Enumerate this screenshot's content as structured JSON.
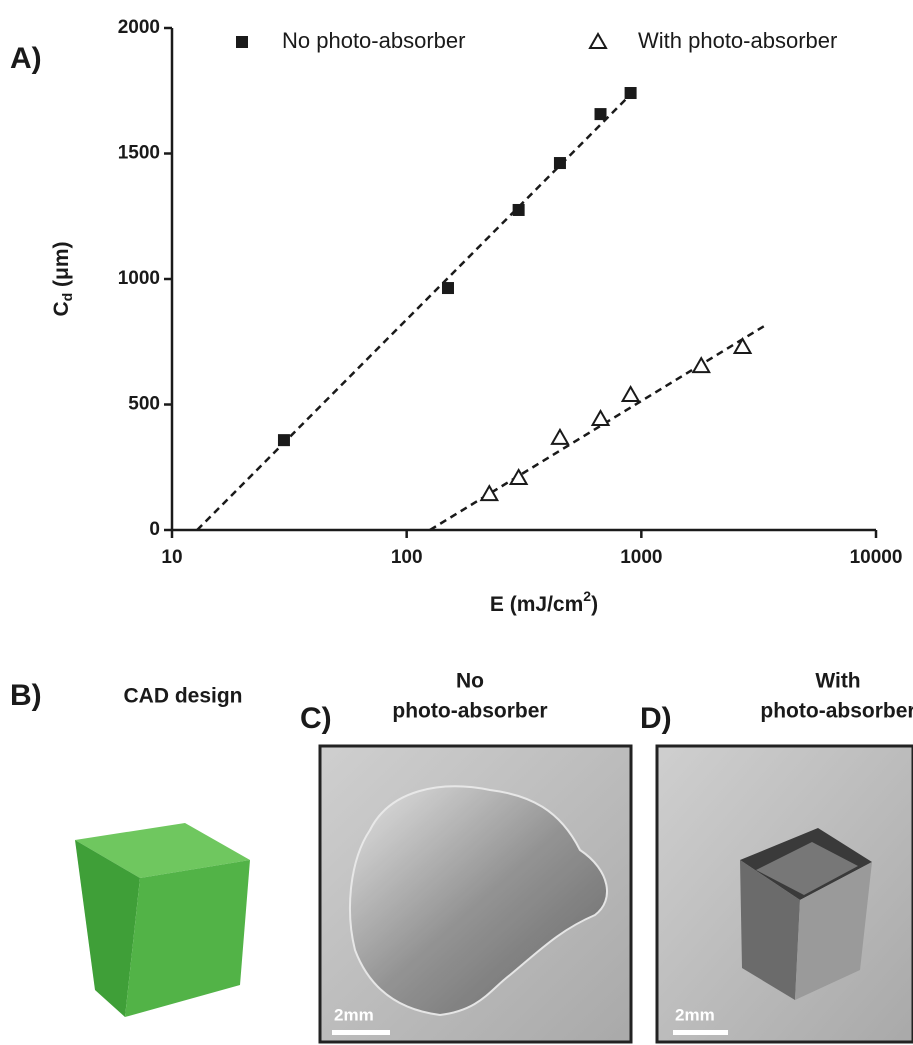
{
  "chart_data": {
    "type": "scatter",
    "panel_label": "A)",
    "xlabel": [
      "E  (mJ/cm",
      "2",
      ")"
    ],
    "ylabel": [
      "C",
      "d",
      " (μm)"
    ],
    "xscale": "log",
    "xlim": [
      10,
      10000
    ],
    "xticks": [
      10,
      100,
      1000,
      10000
    ],
    "ylim": [
      0,
      2000
    ],
    "yticks": [
      0,
      500,
      1000,
      1500,
      2000
    ],
    "grid": false,
    "legend": "top",
    "series": [
      {
        "name": "No photo-absorber",
        "color": "#1a1a1a",
        "marker": "square",
        "x": [
          30,
          150,
          300,
          450,
          670,
          900
        ],
        "values": [
          358,
          964,
          1275,
          1462,
          1657,
          1741
        ]
      },
      {
        "name": "With photo-absorber",
        "color": "#1a1a1a",
        "marker": "triangle",
        "x": [
          225,
          300,
          450,
          670,
          900,
          1800,
          2700
        ],
        "values": [
          143,
          207,
          367,
          442,
          538,
          653,
          729
        ]
      }
    ],
    "fits": [
      {
        "x": [
          12.8,
          940
        ],
        "values": [
          0,
          1753
        ]
      },
      {
        "x": [
          125.7,
          3400
        ],
        "values": [
          0,
          817
        ]
      }
    ]
  },
  "panels": [
    {
      "label": "B)",
      "title": [
        "CAD design"
      ]
    },
    {
      "label": "C)",
      "title": [
        "No",
        "photo-absorber"
      ],
      "scale_bar": "2mm"
    },
    {
      "label": "D)",
      "title": [
        "With",
        "photo-absorber"
      ],
      "scale_bar": "2mm"
    }
  ]
}
